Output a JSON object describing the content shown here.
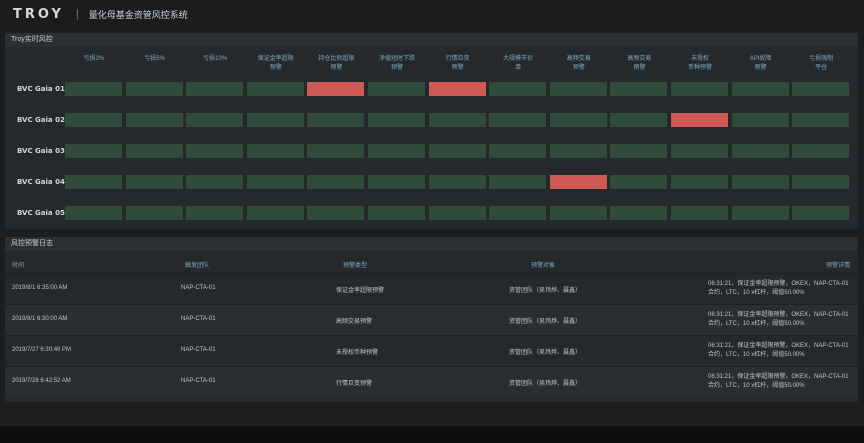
{
  "header": {
    "logo": "TROY",
    "separator": "|",
    "title": "量化母基金资管风控系统"
  },
  "risk_panel": {
    "title": "Troy实时风控",
    "columns": [
      [
        "亏损2%",
        ""
      ],
      [
        "亏损5%",
        ""
      ],
      [
        "亏损10%",
        ""
      ],
      [
        "保证金率超限",
        "预警"
      ],
      [
        "持仓比例超限",
        "预警"
      ],
      [
        "净值短时下跌",
        "预警"
      ],
      [
        "行情巨变",
        "预警"
      ],
      [
        "大规模市价",
        "单"
      ],
      [
        "高频交易",
        "预警"
      ],
      [
        "高频交易",
        "预警"
      ],
      [
        "未授权",
        "币种预警"
      ],
      [
        "API故障",
        "预警"
      ],
      [
        "亏损强制",
        "平仓"
      ]
    ],
    "rows": [
      {
        "label": "BVC Gaia 01",
        "alerts": [
          4,
          6
        ]
      },
      {
        "label": "BVC Gaia 02",
        "alerts": [
          10
        ]
      },
      {
        "label": "BVC Gaia 03",
        "alerts": []
      },
      {
        "label": "BVC Gaia 04",
        "alerts": [
          8
        ]
      },
      {
        "label": "BVC Gaia 05",
        "alerts": []
      }
    ],
    "colors": {
      "normal": "#304a3c",
      "alert": "#cf5a55"
    }
  },
  "log_panel": {
    "title": "风控预警日志",
    "headers": {
      "time": "时间",
      "team": "触发团队",
      "type": "预警类型",
      "target": "预警对象",
      "detail": "预警详情"
    },
    "rows": [
      {
        "time": "2019/8/1  6:35:00 AM",
        "team": "NAP-CTA-01",
        "type": "保证金率超限预警",
        "target": "资管团队（吴玮烨、聂鑫）",
        "detail": [
          "06:31:21，保证金率超限预警，OKEX，NAP-CTA-01",
          "合约，LTC，10 x杠杆，阈值50.00%"
        ]
      },
      {
        "time": "2019/8/1  6:30:00 AM",
        "team": "NAP-CTA-01",
        "type": "高频交易预警",
        "target": "资管团队（吴玮烨、聂鑫）",
        "detail": [
          "06:31:21，保证金率超限预警，OKEX，NAP-CTA-01",
          "合约，LTC，10 x杠杆，阈值50.00%"
        ]
      },
      {
        "time": "2019/7/27  6:30:46 PM",
        "team": "NAP-CTA-01",
        "type": "未授权币种预警",
        "target": "资管团队（吴玮烨、聂鑫）",
        "detail": [
          "06:31:21，保证金率超限预警，OKEX，NAP-CTA-01",
          "合约，LTC，10 x杠杆，阈值50.00%"
        ]
      },
      {
        "time": "2019/7/28  6:42:52 AM",
        "team": "NAP-CTA-01",
        "type": "行情巨变预警",
        "target": "资管团队（吴玮烨、聂鑫）",
        "detail": [
          "06:31:21，保证金率超限预警，OKEX，NAP-CTA-01",
          "合约，LTC，10 x杠杆，阈值50.00%"
        ]
      }
    ]
  }
}
